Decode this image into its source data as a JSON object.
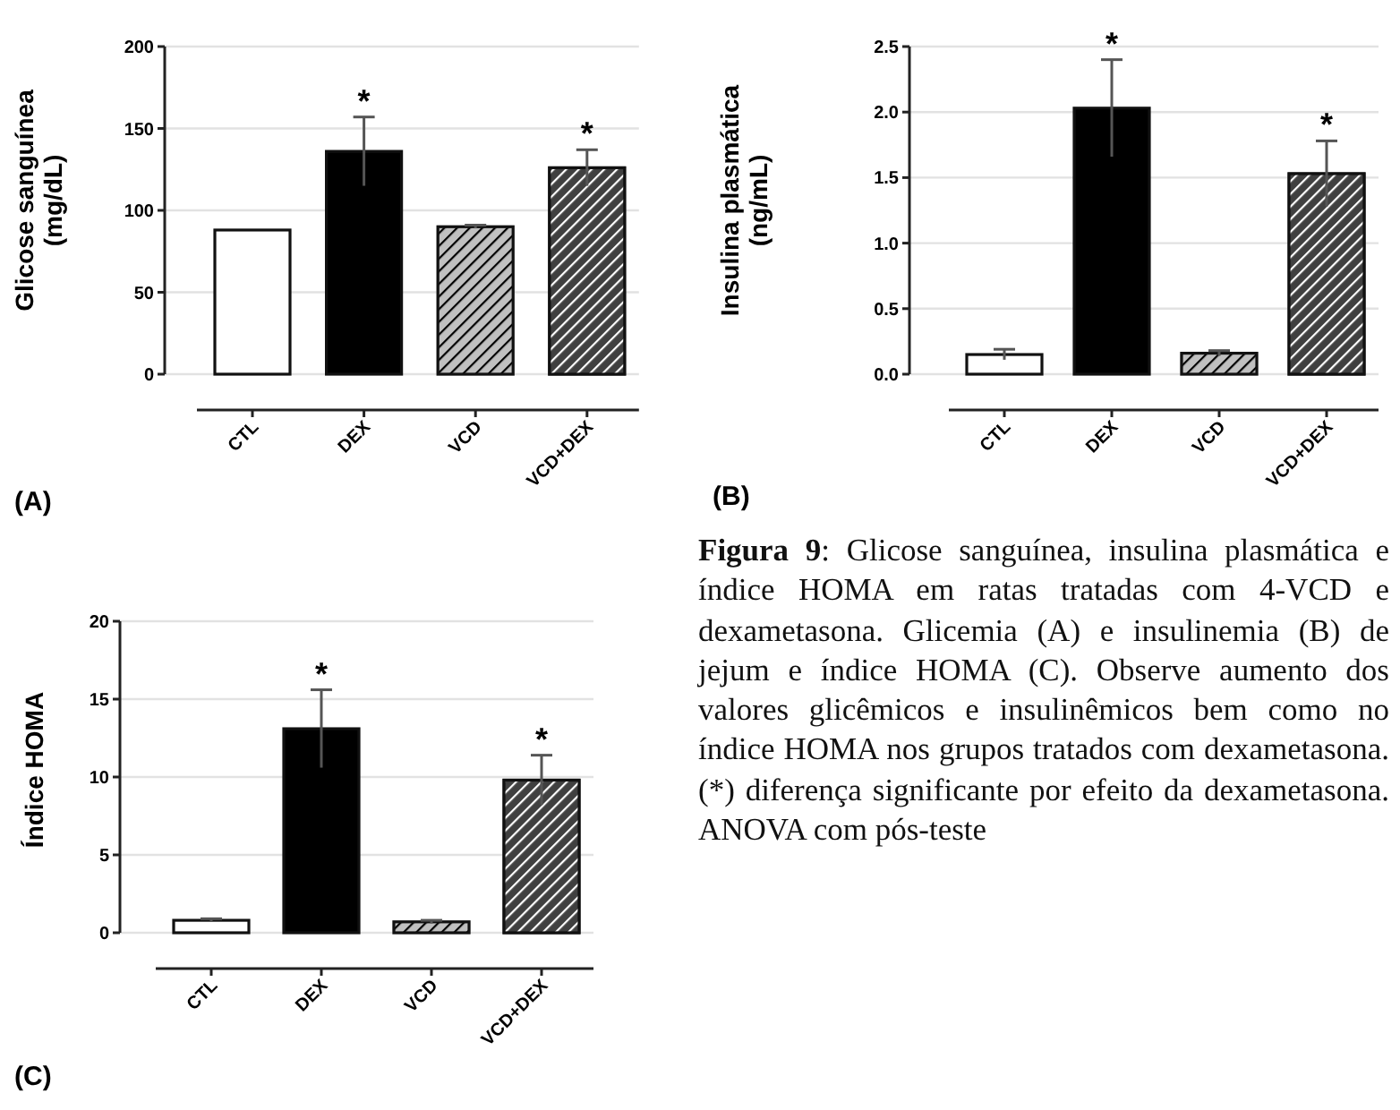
{
  "chart_data": [
    {
      "type": "bar",
      "ylabel": "Glicose sanguínea\n(mg/dL)",
      "categories": [
        "CTL",
        "DEX",
        "VCD",
        "VCD+DEX"
      ],
      "values": [
        88,
        136,
        90,
        126
      ],
      "colors": [
        "#ffffff",
        "#000000",
        "#c0c0c0",
        "#404040"
      ],
      "errors": [
        null,
        21,
        1,
        11
      ],
      "ylim": [
        0,
        200
      ],
      "yticks": [
        0,
        50,
        100,
        150,
        200
      ],
      "grid": "y",
      "annotations": [
        "(A)",
        {
          "text": "*",
          "x": "DEX",
          "y": 157
        },
        {
          "text": "*",
          "x": "VCD+DEX",
          "y": 137
        }
      ]
    },
    {
      "type": "bar",
      "ylabel": "Insulina plasmática\n(ng/mL)",
      "categories": [
        "CTL",
        "DEX",
        "VCD",
        "VCD+DEX"
      ],
      "values": [
        0.15,
        2.03,
        0.16,
        1.53
      ],
      "colors": [
        "#ffffff",
        "#000000",
        "#c0c0c0",
        "#404040"
      ],
      "errors": [
        0.04,
        0.37,
        0.02,
        0.25
      ],
      "ylim": [
        0,
        2.5
      ],
      "yticks": [
        {
          "value": 0,
          "label": "0.0"
        },
        {
          "value": 0.5,
          "label": "0.5"
        },
        {
          "value": 1,
          "label": "1.0"
        },
        {
          "value": 1.5,
          "label": "1.5"
        },
        {
          "value": 2,
          "label": "2.0"
        },
        {
          "value": 2.5,
          "label": "2.5"
        }
      ],
      "grid": "y",
      "annotations": [
        "(B)",
        {
          "text": "*",
          "x": "DEX",
          "y": 2.4
        },
        {
          "text": "*",
          "x": "VCD+DEX",
          "y": 1.78
        }
      ]
    },
    {
      "type": "bar",
      "ylabel": "Índice HOMA",
      "categories": [
        "CTL",
        "DEX",
        "VCD",
        "VCD+DEX"
      ],
      "values": [
        0.8,
        13.1,
        0.7,
        9.8
      ],
      "colors": [
        "#ffffff",
        "#000000",
        "#c0c0c0",
        "#404040"
      ],
      "errors": [
        0.1,
        2.5,
        0.1,
        1.6
      ],
      "ylim": [
        0,
        20
      ],
      "yticks": [
        0,
        5,
        10,
        15,
        20
      ],
      "grid": "y",
      "annotations": [
        "(C)",
        {
          "text": "*",
          "x": "DEX",
          "y": 15.6
        },
        {
          "text": "*",
          "x": "VCD+DEX",
          "y": 11.4
        }
      ]
    },
    {
      "type": "other",
      "title": "Figura 9",
      "annotations": [
        ": Glicose sanguínea, insulina plasmática e índice HOMA em ratas tratadas com 4-VCD e dexametasona. Glicemia (A) e insulinemia (B) de jejum e índice HOMA (C). Observe aumento dos valores glicêmicos e insulinêmicos bem como no índice HOMA nos grupos tratados com dexametasona. (*) diferença significante por efeito da dexametasona. ANOVA com pós-teste"
      ]
    }
  ]
}
